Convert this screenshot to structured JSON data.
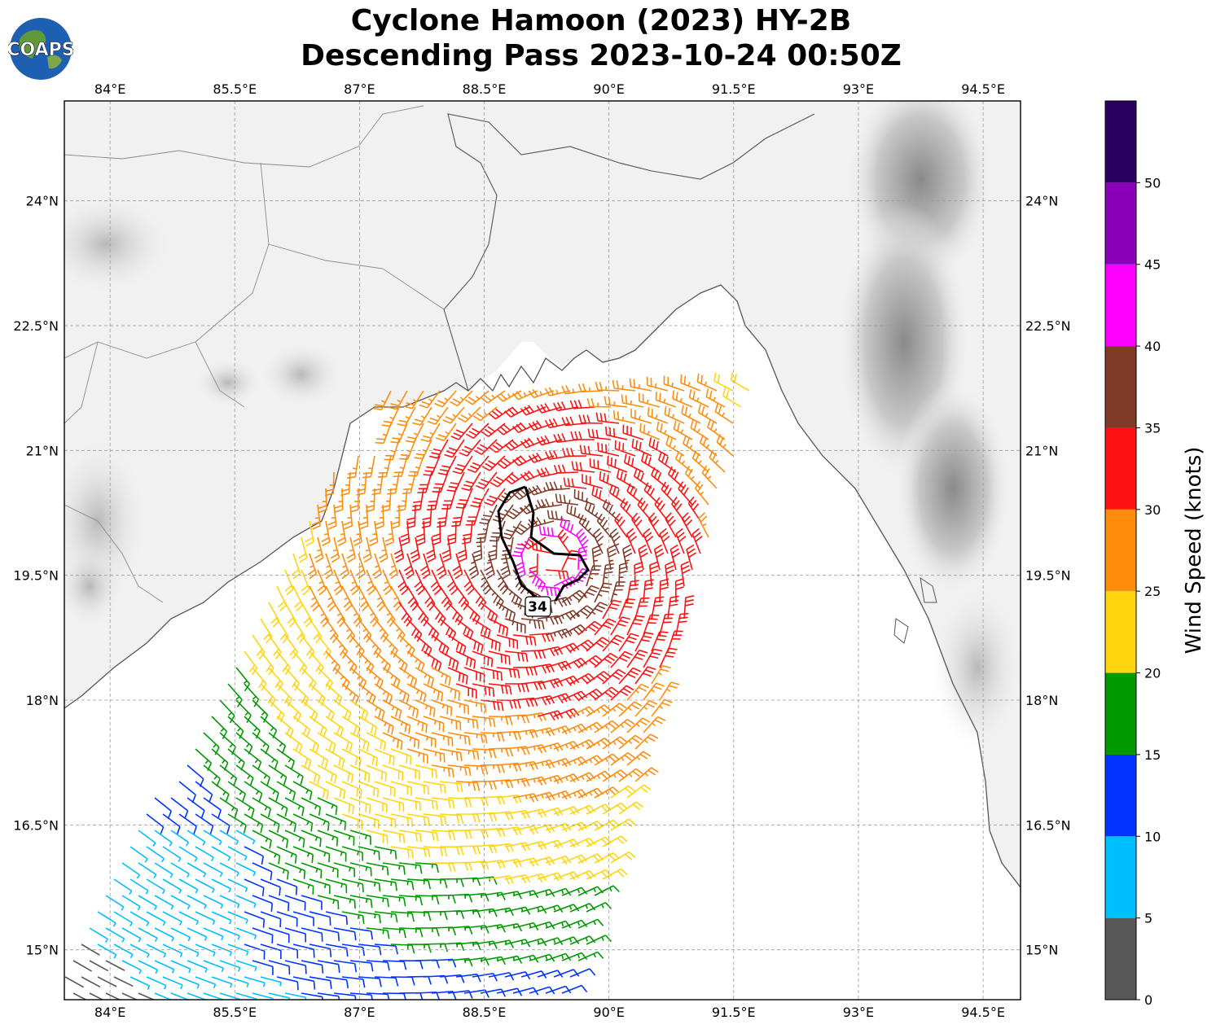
{
  "title_line1": "Cyclone Hamoon (2023) HY-2B",
  "title_line2": "Descending Pass 2023-10-24 00:50Z",
  "logo_text": "COAPS",
  "map": {
    "lon_ticks": [
      "84°E",
      "85.5°E",
      "87°E",
      "88.5°E",
      "90°E",
      "91.5°E",
      "93°E",
      "94.5°E"
    ],
    "lat_ticks": [
      "24°N",
      "22.5°N",
      "21°N",
      "19.5°N",
      "18°N",
      "16.5°N",
      "15°N"
    ],
    "lon_range": [
      83.45,
      94.95
    ],
    "lat_range": [
      14.4,
      25.2
    ],
    "storm_center": [
      89.3,
      19.7
    ],
    "contour_label": "34",
    "contour_color": "#000000",
    "land_color": "#f2f2f2",
    "coastline_color": "#555555"
  },
  "colorbar": {
    "label": "Wind Speed (knots)",
    "ticks": [
      "0",
      "5",
      "10",
      "15",
      "20",
      "25",
      "30",
      "35",
      "40",
      "45",
      "50"
    ],
    "bins": [
      {
        "min": 0,
        "max": 5,
        "color": "#585858"
      },
      {
        "min": 5,
        "max": 10,
        "color": "#00bfff"
      },
      {
        "min": 10,
        "max": 15,
        "color": "#0033ff"
      },
      {
        "min": 15,
        "max": 20,
        "color": "#009900"
      },
      {
        "min": 20,
        "max": 25,
        "color": "#ffd510"
      },
      {
        "min": 25,
        "max": 30,
        "color": "#ff8c0a"
      },
      {
        "min": 30,
        "max": 35,
        "color": "#ff1010"
      },
      {
        "min": 35,
        "max": 40,
        "color": "#7f3a28"
      },
      {
        "min": 40,
        "max": 45,
        "color": "#ff00ff"
      },
      {
        "min": 45,
        "max": 50,
        "color": "#8a00b8"
      },
      {
        "min": 50,
        "max": 55,
        "color": "#2b0060"
      }
    ]
  }
}
